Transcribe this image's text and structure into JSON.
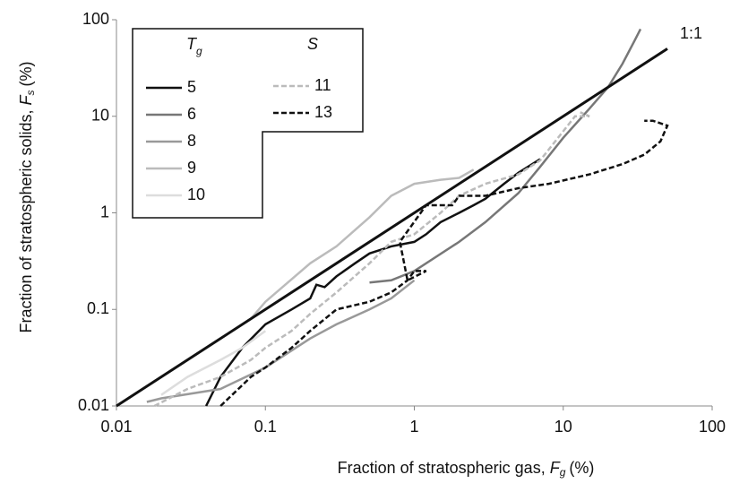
{
  "chart_data": {
    "type": "line",
    "log_x": true,
    "log_y": true,
    "xlabel": {
      "text": "Fraction of stratospheric gas, ",
      "symbol": "F",
      "subscript": "g",
      "unit": "(%)"
    },
    "ylabel": {
      "text": "Fraction of stratospheric solids, ",
      "symbol": "F",
      "subscript": "s",
      "unit": "(%)"
    },
    "xlim": [
      0.01,
      100
    ],
    "ylim": [
      0.01,
      100
    ],
    "xticks": [
      0.01,
      0.1,
      1,
      10,
      100
    ],
    "yticks": [
      0.01,
      0.1,
      1,
      10,
      100
    ],
    "legend_position": "upper left",
    "legend_title_1": {
      "symbol": "T",
      "subscript": "g"
    },
    "legend_title_2": "S",
    "reference_line": {
      "name": "1:1",
      "color": "#111111",
      "x": [
        0.01,
        50
      ],
      "values": [
        0.01,
        50
      ]
    },
    "series": [
      {
        "name": "5",
        "color": "#111111",
        "dashed": false,
        "x": [
          0.04,
          0.05,
          0.07,
          0.1,
          0.15,
          0.2,
          0.22,
          0.25,
          0.3,
          0.4,
          0.5,
          0.7,
          1,
          1.2,
          1.5,
          2,
          2.5,
          3,
          4,
          5,
          7
        ],
        "values": [
          0.01,
          0.02,
          0.04,
          0.07,
          0.1,
          0.13,
          0.18,
          0.17,
          0.22,
          0.3,
          0.38,
          0.45,
          0.5,
          0.6,
          0.8,
          1,
          1.2,
          1.4,
          2,
          2.6,
          3.6
        ]
      },
      {
        "name": "6",
        "color": "#777777",
        "label_color": "#777777",
        "dashed": false,
        "x": [
          0.5,
          0.7,
          1,
          2,
          3,
          5,
          7,
          10,
          15,
          20,
          25,
          30,
          33
        ],
        "values": [
          0.19,
          0.2,
          0.25,
          0.5,
          0.8,
          1.6,
          3,
          6,
          12,
          20,
          35,
          60,
          80
        ]
      },
      {
        "name": "8",
        "color": "#999999",
        "dashed": false,
        "x": [
          0.016,
          0.02,
          0.05,
          0.1,
          0.2,
          0.3,
          0.5,
          0.7,
          1
        ],
        "values": [
          0.011,
          0.012,
          0.015,
          0.025,
          0.05,
          0.07,
          0.1,
          0.13,
          0.2
        ]
      },
      {
        "name": "9",
        "color": "#bbbbbb",
        "dashed": false,
        "x": [
          0.08,
          0.1,
          0.2,
          0.3,
          0.5,
          0.7,
          1,
          1.5,
          2,
          2.5
        ],
        "values": [
          0.08,
          0.12,
          0.3,
          0.45,
          0.9,
          1.5,
          2,
          2.2,
          2.3,
          2.8
        ]
      },
      {
        "name": "10",
        "color": "#dddddd",
        "dashed": false,
        "x": [
          0.02,
          0.03,
          0.05,
          0.07,
          0.1
        ],
        "values": [
          0.013,
          0.02,
          0.03,
          0.04,
          0.06
        ]
      },
      {
        "name": "11",
        "color": "#bbbbbb",
        "dashed": true,
        "x": [
          0.018,
          0.03,
          0.05,
          0.08,
          0.1,
          0.15,
          0.2,
          0.3,
          0.5,
          0.7,
          1,
          1.5,
          2,
          3,
          5,
          7,
          10,
          12,
          15,
          13
        ],
        "values": [
          0.01,
          0.015,
          0.02,
          0.03,
          0.04,
          0.06,
          0.09,
          0.15,
          0.3,
          0.5,
          0.6,
          1,
          1.5,
          2,
          2.5,
          3.5,
          7,
          10,
          10,
          11
        ]
      },
      {
        "name": "13",
        "color": "#111111",
        "dashed": true,
        "x": [
          0.05,
          0.08,
          0.1,
          0.15,
          0.2,
          0.3,
          0.5,
          0.7,
          0.9,
          1,
          1.2,
          0.9,
          0.8,
          1.2,
          1.8,
          2,
          3,
          5,
          8,
          15,
          25,
          35,
          45,
          50,
          40,
          35
        ],
        "values": [
          0.01,
          0.02,
          0.025,
          0.04,
          0.06,
          0.1,
          0.12,
          0.15,
          0.2,
          0.25,
          0.25,
          0.2,
          0.5,
          1.2,
          1.2,
          1.5,
          1.5,
          1.8,
          2,
          2.5,
          3.2,
          4,
          5.5,
          8,
          9,
          9
        ]
      }
    ]
  }
}
